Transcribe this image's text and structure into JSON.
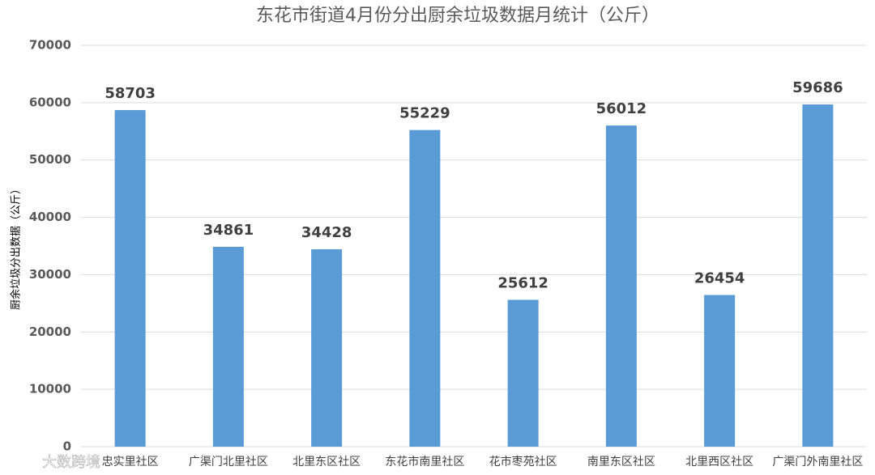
{
  "chart_data": {
    "type": "bar",
    "title": "东花市街道4月份分出厨余垃圾数据月统计（公斤）",
    "y_label": "厨余垃圾分出数据（公斤）",
    "categories": [
      "忠实里社区",
      "广渠门北里社区",
      "北里东区社区",
      "东花市南里社区",
      "花市枣苑社区",
      "南里东区社区",
      "北里西区社区",
      "广渠门外南里社区"
    ],
    "values": [
      58703,
      34861,
      34428,
      55229,
      25612,
      56012,
      26454,
      59686
    ],
    "color": "#5b9bd5",
    "ylim": [
      0,
      70000
    ],
    "yticks": [
      0,
      10000,
      20000,
      30000,
      40000,
      50000,
      60000,
      70000
    ],
    "grid": true
  },
  "watermark": "大数跨境"
}
